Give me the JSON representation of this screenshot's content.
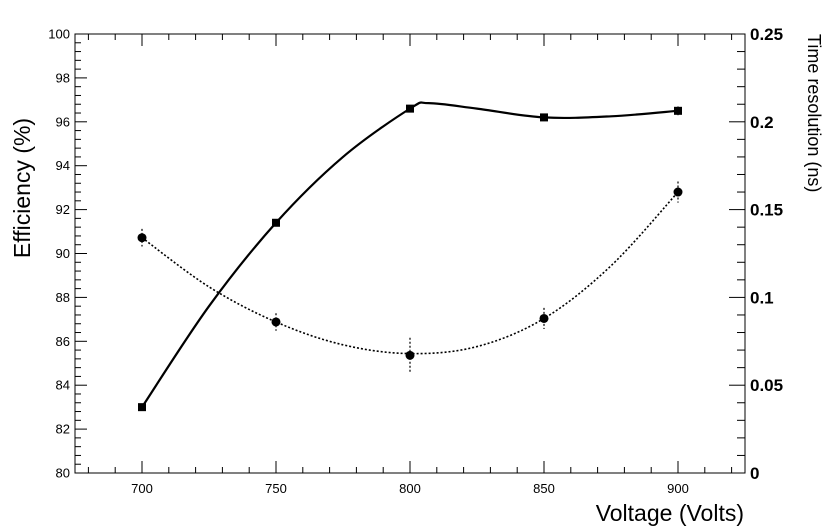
{
  "chart_data": {
    "type": "line",
    "xlabel": "Voltage (Volts)",
    "ylabel": "Efficiency (%)",
    "y2label": "Time resolution (ns)",
    "xlim": [
      675,
      925
    ],
    "ylim": [
      80,
      100
    ],
    "y2lim": [
      0,
      0.25
    ],
    "x_ticks": [
      700,
      750,
      800,
      850,
      900
    ],
    "y_ticks": [
      80,
      82,
      84,
      86,
      88,
      90,
      92,
      94,
      96,
      98,
      100
    ],
    "y2_ticks": [
      0,
      0.05,
      0.1,
      0.15,
      0.2,
      0.25
    ],
    "x_tick_labels": [
      "700",
      "750",
      "800",
      "850",
      "900"
    ],
    "y_tick_labels": [
      "80",
      "82",
      "84",
      "86",
      "88",
      "90",
      "92",
      "94",
      "96",
      "98",
      "100"
    ],
    "y2_tick_labels": [
      "0",
      "0.05",
      "0.1",
      "0.15",
      "0.2",
      "0.25"
    ],
    "grid": false,
    "series": [
      {
        "axis": "left",
        "marker": "square",
        "line_style": "solid",
        "x": [
          700,
          750,
          800,
          850,
          900
        ],
        "y": [
          83.0,
          91.4,
          96.6,
          96.2,
          96.5
        ],
        "y_err": [
          0.05,
          0.1,
          0.1,
          0.1,
          0.2
        ],
        "curve": [
          [
            700,
            83.0
          ],
          [
            725,
            87.6
          ],
          [
            750,
            91.4
          ],
          [
            775,
            94.4
          ],
          [
            800,
            96.6
          ],
          [
            807,
            96.85
          ],
          [
            825,
            96.6
          ],
          [
            850,
            96.2
          ],
          [
            875,
            96.25
          ],
          [
            900,
            96.5
          ]
        ]
      },
      {
        "axis": "right",
        "marker": "circle",
        "line_style": "dotted",
        "x": [
          700,
          750,
          800,
          850,
          900
        ],
        "y": [
          0.134,
          0.086,
          0.067,
          0.088,
          0.16
        ],
        "y_err": [
          0.005,
          0.005,
          0.01,
          0.006,
          0.006
        ],
        "curve": [
          [
            700,
            0.134
          ],
          [
            725,
            0.106
          ],
          [
            750,
            0.086
          ],
          [
            775,
            0.073
          ],
          [
            800,
            0.068
          ],
          [
            825,
            0.072
          ],
          [
            850,
            0.088
          ],
          [
            875,
            0.118
          ],
          [
            900,
            0.16
          ]
        ]
      }
    ]
  }
}
